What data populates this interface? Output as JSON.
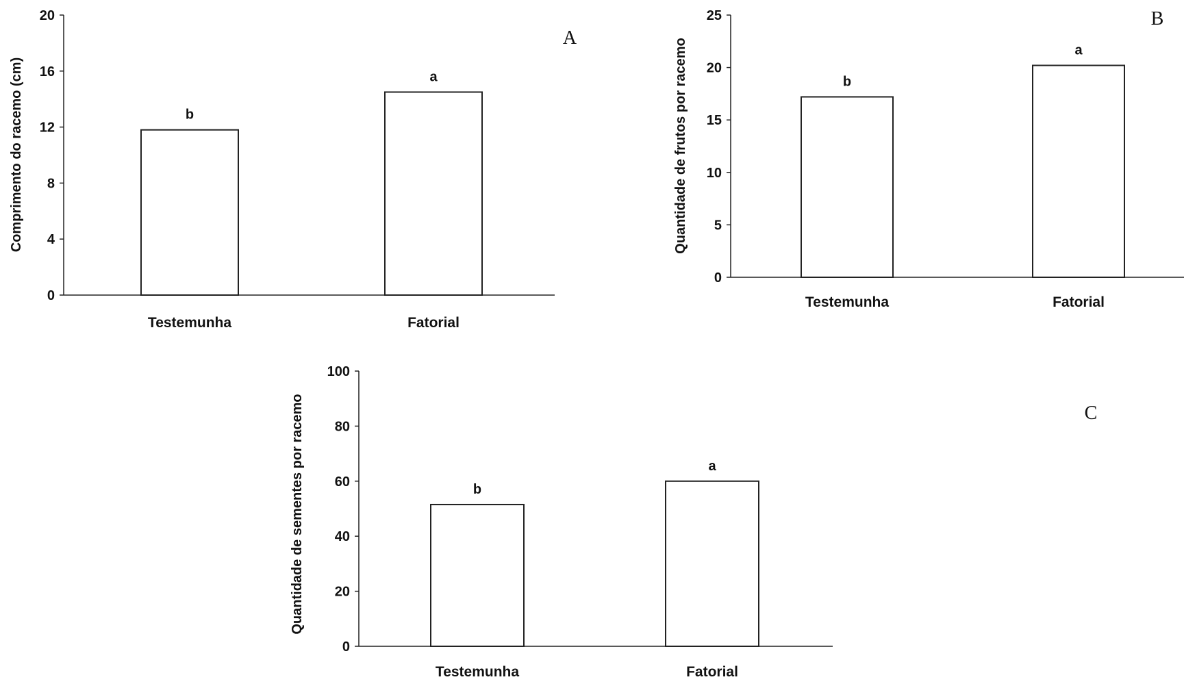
{
  "chart_data": [
    {
      "type": "bar",
      "panel_label": "A",
      "categories": [
        "Testemunha",
        "Fatorial"
      ],
      "values": [
        11.8,
        14.5
      ],
      "bar_labels": [
        "b",
        "a"
      ],
      "ylabel": "Comprimento do racemo (cm)",
      "xlabel": "",
      "ylim": [
        0,
        20
      ],
      "yticks": [
        0,
        4,
        8,
        12,
        16,
        20
      ],
      "grid": false
    },
    {
      "type": "bar",
      "panel_label": "B",
      "categories": [
        "Testemunha",
        "Fatorial"
      ],
      "values": [
        17.2,
        20.2
      ],
      "bar_labels": [
        "b",
        "a"
      ],
      "ylabel": "Quantidade de frutos por racemo",
      "xlabel": "",
      "ylim": [
        0,
        25
      ],
      "yticks": [
        0,
        5,
        10,
        15,
        20,
        25
      ],
      "grid": false
    },
    {
      "type": "bar",
      "panel_label": "C",
      "categories": [
        "Testemunha",
        "Fatorial"
      ],
      "values": [
        51.5,
        60
      ],
      "bar_labels": [
        "b",
        "a"
      ],
      "ylabel": "Quantidade de sementes por racemo",
      "xlabel": "",
      "ylim": [
        0,
        100
      ],
      "yticks": [
        0,
        20,
        40,
        60,
        80,
        100
      ],
      "grid": false
    }
  ]
}
